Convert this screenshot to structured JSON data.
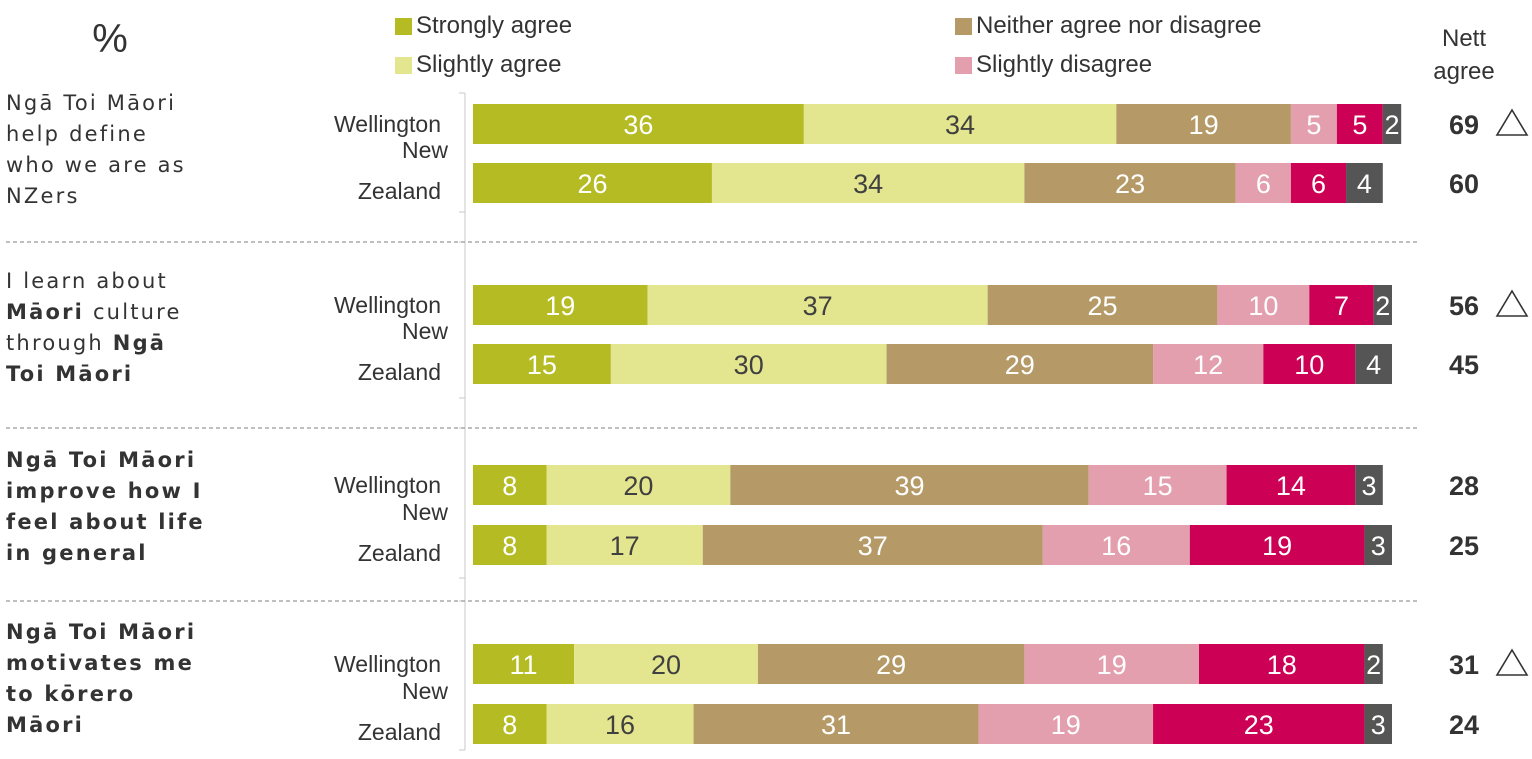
{
  "chart_data": {
    "type": "bar",
    "orientation": "horizontal",
    "stacked": true,
    "unit_label": "%",
    "legend": [
      {
        "name": "Strongly agree",
        "color": "#b5bb22"
      },
      {
        "name": "Slightly agree",
        "color": "#e4e68f"
      },
      {
        "name": "Neither agree nor disagree",
        "color": "#b59a67"
      },
      {
        "name": "Slightly disagree",
        "color": "#e39fae"
      }
    ],
    "segment_colors": [
      "#b5bb22",
      "#e4e68f",
      "#b59a67",
      "#e39fae",
      "#cc0055",
      "#555555"
    ],
    "segment_text_colors": [
      "#ffffff",
      "#404040",
      "#ffffff",
      "#ffffff",
      "#ffffff",
      "#ffffff"
    ],
    "nett_header": [
      "Nett",
      "agree"
    ],
    "groups": [
      {
        "label_parts": [
          [
            "Ngā Toi Māori"
          ],
          [
            "help define"
          ],
          [
            "who we are as"
          ],
          [
            "NZers"
          ]
        ],
        "bars": [
          {
            "category": [
              "Wellington"
            ],
            "values": [
              36,
              34,
              19,
              5,
              5,
              2
            ],
            "nett": "69",
            "significant": true
          },
          {
            "category": [
              "New",
              "Zealand"
            ],
            "values": [
              26,
              34,
              23,
              6,
              6,
              4
            ],
            "nett": "60",
            "significant": false
          }
        ]
      },
      {
        "label_parts": [
          [
            "I learn about"
          ],
          [
            "*Māori",
            " culture"
          ],
          [
            "through ",
            "*Ngā"
          ],
          [
            "*Toi Māori"
          ]
        ],
        "bars": [
          {
            "category": [
              "Wellington"
            ],
            "values": [
              19,
              37,
              25,
              10,
              7,
              2
            ],
            "nett": "56",
            "significant": true
          },
          {
            "category": [
              "New",
              "Zealand"
            ],
            "values": [
              15,
              30,
              29,
              12,
              10,
              4
            ],
            "nett": "45",
            "significant": false
          }
        ]
      },
      {
        "label_parts": [
          [
            "*Ngā Toi Māori"
          ],
          [
            "*improve how I"
          ],
          [
            "*feel about life"
          ],
          [
            "*in general"
          ]
        ],
        "bars": [
          {
            "category": [
              "Wellington"
            ],
            "values": [
              8,
              20,
              39,
              15,
              14,
              3
            ],
            "nett": "28",
            "significant": false
          },
          {
            "category": [
              "New",
              "Zealand"
            ],
            "values": [
              8,
              17,
              37,
              16,
              19,
              3
            ],
            "nett": "25",
            "significant": false
          }
        ]
      },
      {
        "label_parts": [
          [
            "*Ngā Toi Māori"
          ],
          [
            "*motivates me"
          ],
          [
            "*to kōrero"
          ],
          [
            "*Māori"
          ]
        ],
        "bars": [
          {
            "category": [
              "Wellington"
            ],
            "values": [
              11,
              20,
              29,
              19,
              18,
              2
            ],
            "nett": "31",
            "significant": true
          },
          {
            "category": [
              "New",
              "Zealand"
            ],
            "values": [
              8,
              16,
              31,
              19,
              23,
              3
            ],
            "nett": "24",
            "significant": false
          }
        ]
      }
    ]
  }
}
